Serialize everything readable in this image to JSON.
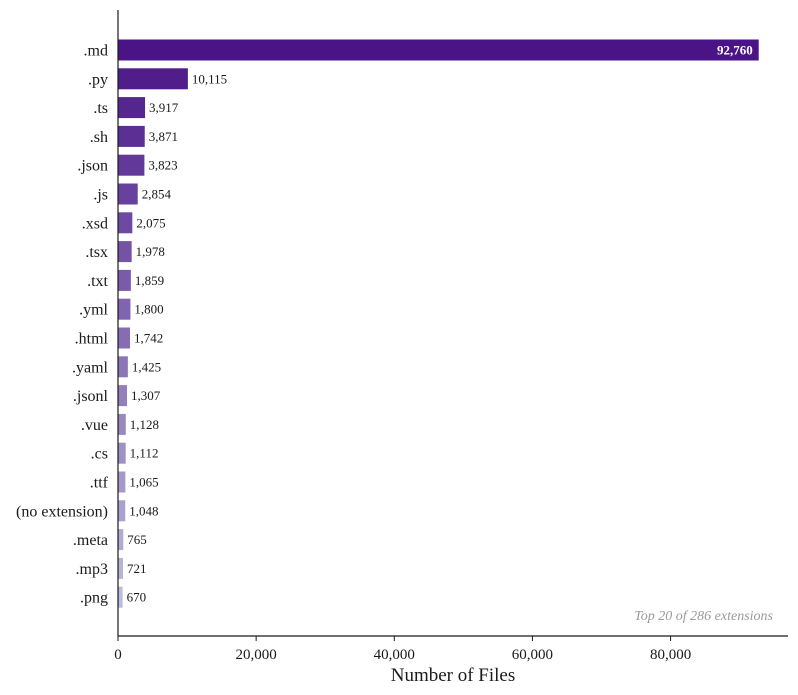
{
  "chart_data": {
    "type": "bar",
    "orientation": "horizontal",
    "categories": [
      ".md",
      ".py",
      ".ts",
      ".sh",
      ".json",
      ".js",
      ".xsd",
      ".tsx",
      ".txt",
      ".yml",
      ".html",
      ".yaml",
      ".jsonl",
      ".vue",
      ".cs",
      ".ttf",
      "(no extension)",
      ".meta",
      ".mp3",
      ".png"
    ],
    "values": [
      92760,
      10115,
      3917,
      3871,
      3823,
      2854,
      2075,
      1978,
      1859,
      1800,
      1742,
      1425,
      1307,
      1128,
      1112,
      1065,
      1048,
      765,
      721,
      670
    ],
    "value_labels": [
      "92,760",
      "10,115",
      "3,917",
      "3,871",
      "3,823",
      "2,854",
      "2,075",
      "1,978",
      "1,859",
      "1,800",
      "1,742",
      "1,425",
      "1,307",
      "1,128",
      "1,112",
      "1,065",
      "1,048",
      "765",
      "721",
      "670"
    ],
    "xlabel": "Number of Files",
    "ylabel": "",
    "title": "",
    "xlim": [
      0,
      97000
    ],
    "xticks": [
      0,
      20000,
      40000,
      60000,
      80000
    ],
    "xtick_labels": [
      "0",
      "20,000",
      "40,000",
      "60,000",
      "80,000"
    ],
    "annotation": "Top 20 of 286 extensions",
    "colors": {
      "start": "#4a1486",
      "end": "#bcbddc"
    },
    "grid": false,
    "legend": "none"
  }
}
